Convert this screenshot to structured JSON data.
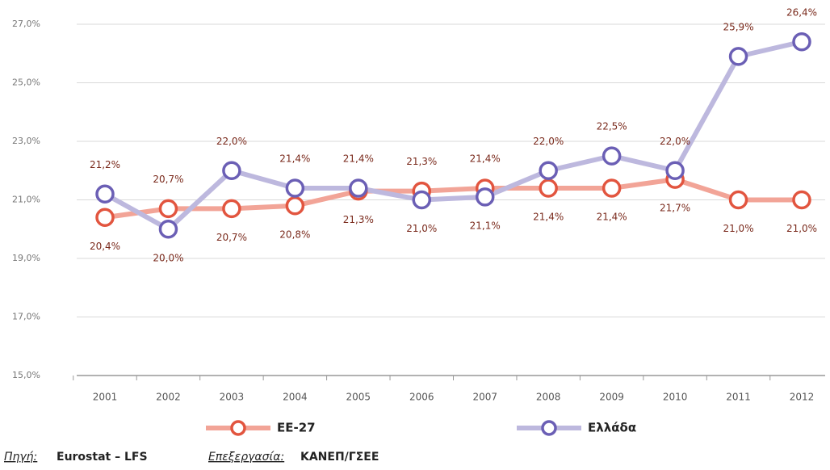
{
  "chart_data": {
    "type": "line",
    "categories": [
      "2001",
      "2002",
      "2003",
      "2004",
      "2005",
      "2006",
      "2007",
      "2008",
      "2009",
      "2010",
      "2011",
      "2012"
    ],
    "series": [
      {
        "name": "ΕΕ-27",
        "color": "#f2a497",
        "marker_color": "#e2553f",
        "values": [
          20.4,
          20.7,
          20.7,
          20.8,
          21.3,
          21.3,
          21.4,
          21.4,
          21.4,
          21.7,
          21.0,
          21.0
        ],
        "value_labels": [
          "20,4%",
          "20,7%",
          "20,7%",
          "20,8%",
          "21,3%",
          "21,3%",
          "21,4%",
          "21,4%",
          "21,4%",
          "21,7%",
          "21,0%",
          "21,0%"
        ]
      },
      {
        "name": "Ελλάδα",
        "color": "#bdb8de",
        "marker_color": "#6b5fb5",
        "values": [
          21.2,
          20.0,
          22.0,
          21.4,
          21.4,
          21.0,
          21.1,
          22.0,
          22.5,
          22.0,
          25.9,
          26.4
        ],
        "value_labels": [
          "21,2%",
          "20,0%",
          "22,0%",
          "21,4%",
          "21,4%",
          "21,0%",
          "21,1%",
          "22,0%",
          "22,5%",
          "22,0%",
          "25,9%",
          "26,4%"
        ]
      }
    ],
    "ylim": [
      15,
      27
    ],
    "yticks": [
      {
        "value": 15,
        "label": "15,0%"
      },
      {
        "value": 17,
        "label": "17,0%"
      },
      {
        "value": 19,
        "label": "19,0%"
      },
      {
        "value": 21,
        "label": "21,0%"
      },
      {
        "value": 23,
        "label": "23,0%"
      },
      {
        "value": 25,
        "label": "25,0%"
      },
      {
        "value": 27,
        "label": "27,0%"
      }
    ],
    "grid": true,
    "source_label": "Πηγή:",
    "source": "Eurostat – LFS",
    "processing_label": "Επεξεργασία:",
    "processing": "ΚΑΝΕΠ/ΓΣΕΕ"
  }
}
